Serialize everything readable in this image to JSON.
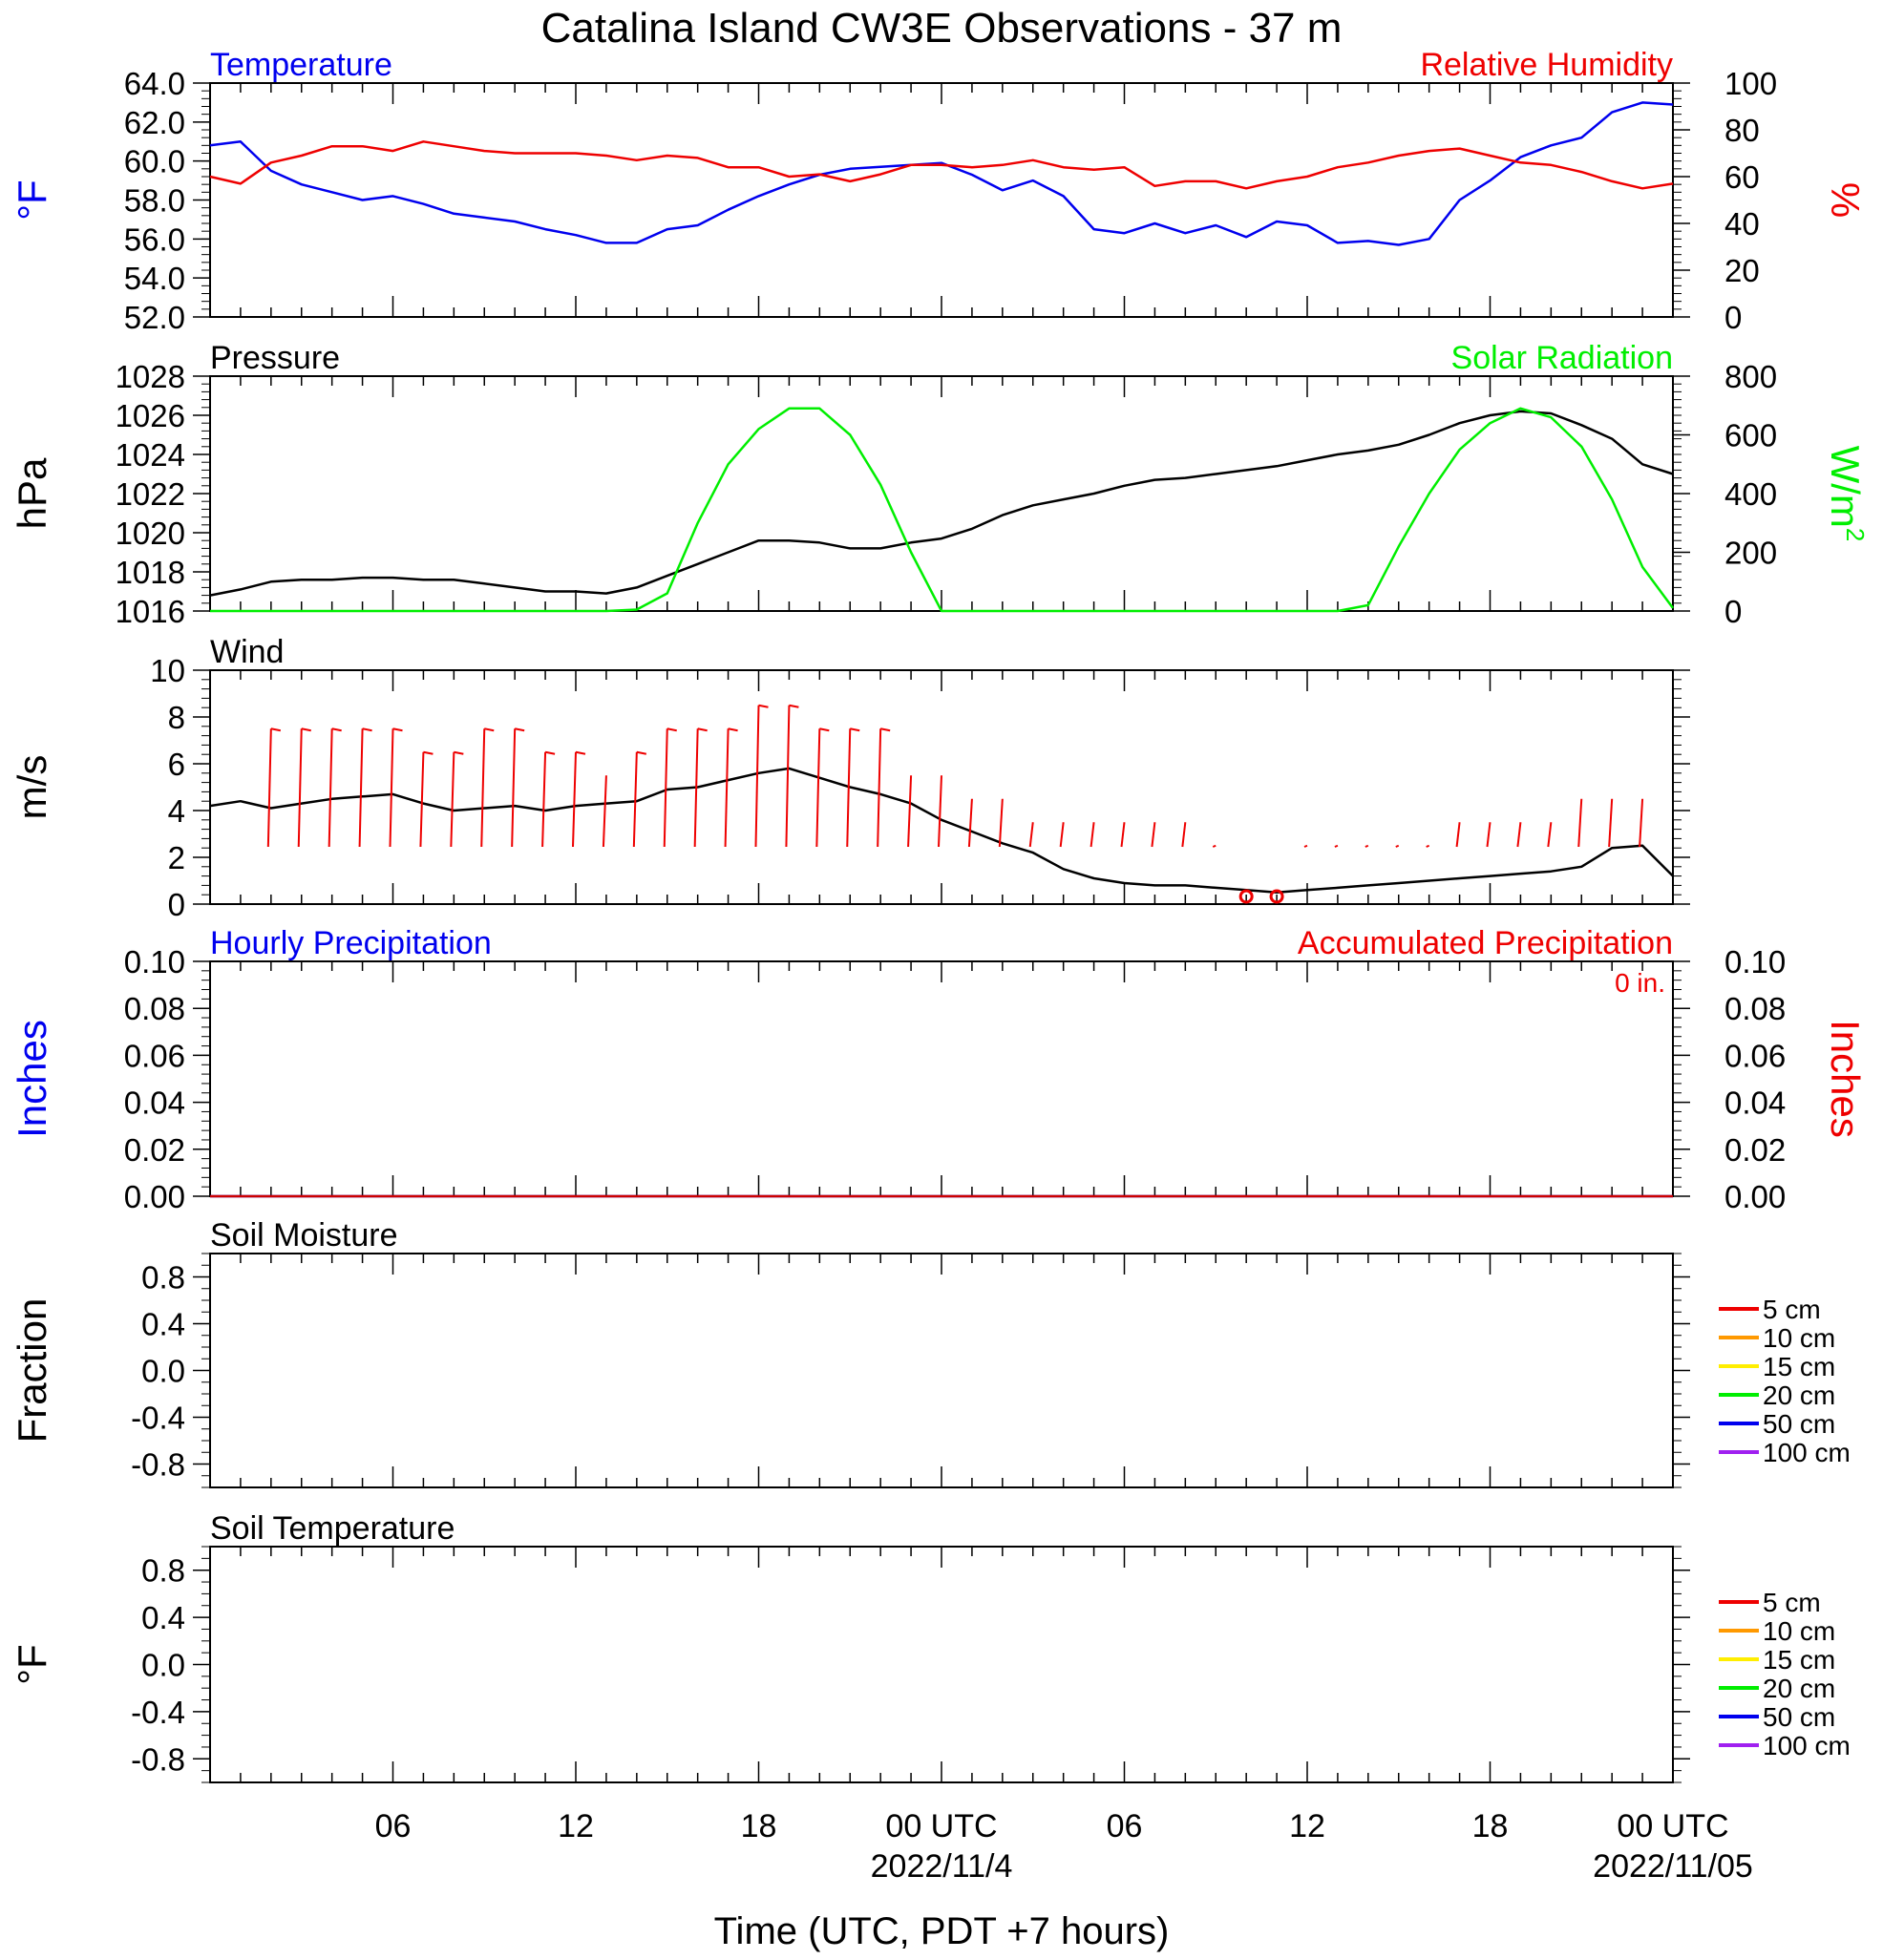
{
  "title": "Catalina Island CW3E Observations - 37 m",
  "x_axis": {
    "label": "Time (UTC, PDT +7 hours)",
    "tick_labels": [
      "06",
      "12",
      "18",
      "00 UTC",
      "06",
      "12",
      "18",
      "00 UTC"
    ],
    "date_labels": [
      "2022/11/4",
      "2022/11/05"
    ]
  },
  "chart_data": [
    {
      "type": "line",
      "panel": "temperature_humidity",
      "title_left": "Temperature",
      "title_right": "Relative Humidity",
      "ylabel_left": "°F",
      "ylabel_right": "%",
      "x_hours": [
        0,
        1,
        2,
        3,
        4,
        5,
        6,
        7,
        8,
        9,
        10,
        11,
        12,
        13,
        14,
        15,
        16,
        17,
        18,
        19,
        20,
        21,
        22,
        23,
        24,
        25,
        26,
        27,
        28,
        29,
        30,
        31,
        32,
        33,
        34,
        35,
        36,
        37,
        38,
        39,
        40,
        41,
        42,
        43,
        44,
        45,
        46,
        47,
        48
      ],
      "ylim_left": [
        52,
        64
      ],
      "yticks_left": [
        "52.0",
        "54.0",
        "56.0",
        "58.0",
        "60.0",
        "62.0",
        "64.0"
      ],
      "ylim_right": [
        0,
        100
      ],
      "yticks_right": [
        "0",
        "20",
        "40",
        "60",
        "80",
        "100"
      ],
      "series": [
        {
          "axis": "left",
          "color": "#0000ee",
          "values": [
            60.8,
            61.0,
            59.5,
            58.8,
            58.4,
            58.0,
            58.2,
            57.8,
            57.3,
            57.1,
            56.9,
            56.5,
            56.2,
            55.8,
            55.8,
            56.5,
            56.7,
            57.5,
            58.2,
            58.8,
            59.3,
            59.6,
            59.7,
            59.8,
            59.9,
            59.3,
            58.5,
            59.0,
            58.2,
            56.5,
            56.3,
            56.8,
            56.3,
            56.7,
            56.1,
            56.9,
            56.7,
            55.8,
            55.9,
            55.7,
            56.0,
            58.0,
            59.0,
            60.2,
            60.8,
            61.2,
            62.5,
            63.0,
            62.9
          ]
        },
        {
          "axis": "right",
          "color": "#ee0000",
          "values": [
            60,
            57,
            66,
            69,
            73,
            73,
            71,
            75,
            73,
            71,
            70,
            70,
            70,
            69,
            67,
            69,
            68,
            64,
            64,
            60,
            61,
            58,
            61,
            65,
            65,
            64,
            65,
            67,
            64,
            63,
            64,
            56,
            58,
            58,
            55,
            58,
            60,
            64,
            66,
            69,
            71,
            72,
            69,
            66,
            65,
            62,
            58,
            55,
            57
          ]
        }
      ]
    },
    {
      "type": "line",
      "panel": "pressure_solar",
      "title_left": "Pressure",
      "title_right": "Solar Radiation",
      "ylabel_left": "hPa",
      "ylabel_right": "W/m",
      "ylabel_right_sup": "2",
      "x_hours": [
        0,
        1,
        2,
        3,
        4,
        5,
        6,
        7,
        8,
        9,
        10,
        11,
        12,
        13,
        14,
        15,
        16,
        17,
        18,
        19,
        20,
        21,
        22,
        23,
        24,
        25,
        26,
        27,
        28,
        29,
        30,
        31,
        32,
        33,
        34,
        35,
        36,
        37,
        38,
        39,
        40,
        41,
        42,
        43,
        44,
        45,
        46,
        47,
        48
      ],
      "ylim_left": [
        1016,
        1028
      ],
      "yticks_left": [
        "1016",
        "1018",
        "1020",
        "1022",
        "1024",
        "1026",
        "1028"
      ],
      "ylim_right": [
        0,
        800
      ],
      "yticks_right": [
        "0",
        "200",
        "400",
        "600",
        "800"
      ],
      "series": [
        {
          "axis": "left",
          "color": "#000000",
          "values": [
            1016.8,
            1017.1,
            1017.5,
            1017.6,
            1017.6,
            1017.7,
            1017.7,
            1017.6,
            1017.6,
            1017.4,
            1017.2,
            1017.0,
            1017.0,
            1016.9,
            1017.2,
            1017.8,
            1018.4,
            1019.0,
            1019.6,
            1019.6,
            1019.5,
            1019.2,
            1019.2,
            1019.5,
            1019.7,
            1020.2,
            1020.9,
            1021.4,
            1021.7,
            1022.0,
            1022.4,
            1022.7,
            1022.8,
            1023.0,
            1023.2,
            1023.4,
            1023.7,
            1024.0,
            1024.2,
            1024.5,
            1025.0,
            1025.6,
            1026.0,
            1026.2,
            1026.1,
            1025.5,
            1024.8,
            1023.5,
            1023.0
          ]
        },
        {
          "axis": "right",
          "color": "#00ee00",
          "values": [
            0,
            0,
            0,
            0,
            0,
            0,
            0,
            0,
            0,
            0,
            0,
            0,
            0,
            0,
            5,
            60,
            300,
            500,
            620,
            690,
            690,
            600,
            430,
            200,
            0,
            0,
            0,
            0,
            0,
            0,
            0,
            0,
            0,
            0,
            0,
            0,
            0,
            0,
            20,
            220,
            400,
            550,
            640,
            690,
            660,
            560,
            380,
            150,
            10
          ]
        }
      ]
    },
    {
      "type": "line",
      "panel": "wind",
      "title_left": "Wind",
      "ylabel_left": "m/s",
      "x_hours": [
        0,
        1,
        2,
        3,
        4,
        5,
        6,
        7,
        8,
        9,
        10,
        11,
        12,
        13,
        14,
        15,
        16,
        17,
        18,
        19,
        20,
        21,
        22,
        23,
        24,
        25,
        26,
        27,
        28,
        29,
        30,
        31,
        32,
        33,
        34,
        35,
        36,
        37,
        38,
        39,
        40,
        41,
        42,
        43,
        44,
        45,
        46,
        47,
        48
      ],
      "ylim_left": [
        0,
        10
      ],
      "yticks_left": [
        "0",
        "2",
        "4",
        "6",
        "8",
        "10"
      ],
      "series": [
        {
          "axis": "left",
          "color": "#000000",
          "values": [
            4.2,
            4.4,
            4.1,
            4.3,
            4.5,
            4.6,
            4.7,
            4.3,
            4.0,
            4.1,
            4.2,
            4.0,
            4.2,
            4.3,
            4.4,
            4.9,
            5.0,
            5.3,
            5.6,
            5.8,
            5.4,
            5.0,
            4.7,
            4.3,
            3.6,
            3.1,
            2.6,
            2.2,
            1.5,
            1.1,
            0.9,
            0.8,
            0.8,
            0.7,
            0.6,
            0.5,
            0.6,
            0.7,
            0.8,
            0.9,
            1.0,
            1.1,
            1.2,
            1.3,
            1.4,
            1.6,
            2.4,
            2.5,
            1.2
          ]
        }
      ],
      "wind_barbs": {
        "color": "#ee0000",
        "x_hours": [
          2,
          3,
          4,
          5,
          6,
          7,
          8,
          9,
          10,
          11,
          12,
          13,
          14,
          15,
          16,
          17,
          18,
          19,
          20,
          21,
          22,
          23,
          24,
          25,
          26,
          27,
          28,
          29,
          30,
          31,
          32,
          33,
          34,
          35,
          36,
          37,
          38,
          39,
          40,
          41,
          42,
          43,
          44,
          45,
          46,
          47
        ],
        "speeds": [
          6,
          6,
          6,
          6,
          6,
          5,
          5,
          6,
          6,
          5,
          5,
          4,
          5,
          6,
          6,
          6,
          7,
          7,
          6,
          6,
          6,
          4,
          4,
          3,
          3,
          2,
          2,
          2,
          2,
          2,
          2,
          1,
          0,
          0,
          1,
          1,
          1,
          1,
          1,
          2,
          2,
          2,
          2,
          3,
          3,
          3
        ],
        "calm_hours": [
          34,
          35
        ]
      }
    },
    {
      "type": "line",
      "panel": "precipitation",
      "title_left": "Hourly Precipitation",
      "title_right": "Accumulated Precipitation",
      "annotation": "0 in.",
      "ylabel_left": "Inches",
      "ylabel_right": "Inches",
      "ylim_left": [
        0,
        0.1
      ],
      "yticks_left": [
        "0.00",
        "0.02",
        "0.04",
        "0.06",
        "0.08",
        "0.10"
      ],
      "ylim_right": [
        0,
        0.1
      ],
      "yticks_right": [
        "0.00",
        "0.02",
        "0.04",
        "0.06",
        "0.08",
        "0.10"
      ],
      "series": [
        {
          "axis": "left",
          "color": "#0000ee",
          "x": [
            0,
            48
          ],
          "values": [
            0,
            0
          ]
        },
        {
          "axis": "right",
          "color": "#cc0000",
          "x": [
            0,
            48
          ],
          "values": [
            0,
            0
          ]
        }
      ]
    },
    {
      "type": "line",
      "panel": "soil_moisture",
      "title_left": "Soil Moisture",
      "ylabel_left": "Fraction",
      "ylim_left": [
        -1,
        1
      ],
      "yticks_left": [
        "-0.8",
        "-0.4",
        "0.0",
        "0.4",
        "0.8"
      ],
      "series": [],
      "legend": [
        {
          "label": "5 cm",
          "color": "#ee0000"
        },
        {
          "label": "10 cm",
          "color": "#ff9900"
        },
        {
          "label": "15 cm",
          "color": "#ffee00"
        },
        {
          "label": "20 cm",
          "color": "#00ee00"
        },
        {
          "label": "50 cm",
          "color": "#0000ee"
        },
        {
          "label": "100 cm",
          "color": "#a020f0"
        }
      ]
    },
    {
      "type": "line",
      "panel": "soil_temperature",
      "title_left": "Soil Temperature",
      "ylabel_left": "°F",
      "ylim_left": [
        -1,
        1
      ],
      "yticks_left": [
        "-0.8",
        "-0.4",
        "0.0",
        "0.4",
        "0.8"
      ],
      "series": [],
      "legend": [
        {
          "label": "5 cm",
          "color": "#ee0000"
        },
        {
          "label": "10 cm",
          "color": "#ff9900"
        },
        {
          "label": "15 cm",
          "color": "#ffee00"
        },
        {
          "label": "20 cm",
          "color": "#00ee00"
        },
        {
          "label": "50 cm",
          "color": "#0000ee"
        },
        {
          "label": "100 cm",
          "color": "#a020f0"
        }
      ]
    }
  ]
}
